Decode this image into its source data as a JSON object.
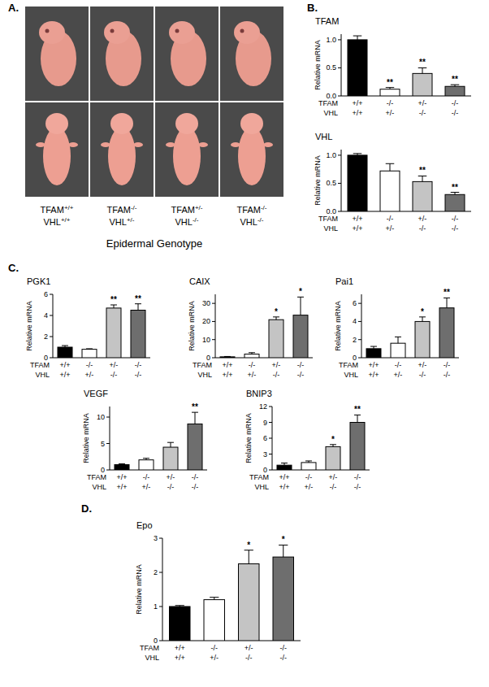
{
  "panel_labels": [
    "A.",
    "B.",
    "C.",
    "D."
  ],
  "photo_panel": {
    "columns": [
      [
        {
          "gene": "TFAM",
          "genotype": "+/+"
        },
        {
          "gene": "VHL",
          "genotype": "+/+"
        }
      ],
      [
        {
          "gene": "TFAM",
          "genotype": "-/-"
        },
        {
          "gene": "VHL",
          "genotype": "+/-"
        }
      ],
      [
        {
          "gene": "TFAM",
          "genotype": "+/-"
        },
        {
          "gene": "VHL",
          "genotype": "-/-"
        }
      ],
      [
        {
          "gene": "TFAM",
          "genotype": "-/-"
        },
        {
          "gene": "VHL",
          "genotype": "-/-"
        }
      ]
    ],
    "caption": "Epidermal Genotype"
  },
  "chart_data": [
    {
      "type": "bar",
      "title": "TFAM",
      "y_label": "Relative mRNA",
      "category_rows": [
        {
          "name": "TFAM",
          "labels": [
            "+/+",
            "-/-",
            "+/-",
            "-/-"
          ]
        },
        {
          "name": "VHL",
          "labels": [
            "+/+",
            "+/-",
            "-/-",
            "-/-"
          ]
        }
      ],
      "values": [
        1.0,
        0.12,
        0.4,
        0.17
      ],
      "errors": [
        0.07,
        0.03,
        0.1,
        0.03
      ],
      "annotations": [
        null,
        "**",
        "**",
        "**"
      ],
      "colors": [
        "#000000",
        "#ffffff",
        "#c4c4c4",
        "#6e6e6e"
      ],
      "ylim": [
        0,
        1.1
      ],
      "yticks": [
        {
          "value": 0,
          "label": "0.0"
        },
        {
          "value": 0.5,
          "label": "0.5"
        },
        {
          "value": 1,
          "label": "1.0"
        }
      ]
    },
    {
      "type": "bar",
      "title": "VHL",
      "y_label": "Relative mRNA",
      "category_rows": [
        {
          "name": "TFAM",
          "labels": [
            "+/+",
            "-/-",
            "+/-",
            "-/-"
          ]
        },
        {
          "name": "VHL",
          "labels": [
            "+/+",
            "+/-",
            "-/-",
            "-/-"
          ]
        }
      ],
      "values": [
        1.0,
        0.72,
        0.53,
        0.3
      ],
      "errors": [
        0.03,
        0.13,
        0.1,
        0.04
      ],
      "annotations": [
        null,
        null,
        "**",
        "**"
      ],
      "colors": [
        "#000000",
        "#ffffff",
        "#c4c4c4",
        "#6e6e6e"
      ],
      "ylim": [
        0,
        1.1
      ],
      "yticks": [
        {
          "value": 0,
          "label": "0.0"
        },
        {
          "value": 0.5,
          "label": "0.5"
        },
        {
          "value": 1,
          "label": "1.0"
        }
      ]
    },
    {
      "type": "bar",
      "title": "PGK1",
      "y_label": "Relative mRNA",
      "category_rows": [
        {
          "name": "TFAM",
          "labels": [
            "+/+",
            "-/-",
            "+/-",
            "-/-"
          ]
        },
        {
          "name": "VHL",
          "labels": [
            "+/+",
            "+/-",
            "-/-",
            "-/-"
          ]
        }
      ],
      "values": [
        1.0,
        0.8,
        4.7,
        4.5
      ],
      "errors": [
        0.15,
        0.05,
        0.3,
        0.6
      ],
      "annotations": [
        null,
        null,
        "**",
        "**"
      ],
      "colors": [
        "#000000",
        "#ffffff",
        "#c4c4c4",
        "#6e6e6e"
      ],
      "ylim": [
        0,
        6
      ],
      "yticks": [
        0,
        2,
        4,
        6
      ]
    },
    {
      "type": "bar",
      "title": "CAIX",
      "y_label": "Relative mRNA",
      "category_rows": [
        {
          "name": "TFAM",
          "labels": [
            "+/+",
            "-/-",
            "+/-",
            "-/-"
          ]
        },
        {
          "name": "VHL",
          "labels": [
            "+/+",
            "+/-",
            "-/-",
            "-/-"
          ]
        }
      ],
      "values": [
        0.5,
        2,
        21,
        23.5
      ],
      "errors": [
        0.2,
        0.8,
        1.5,
        10
      ],
      "annotations": [
        null,
        null,
        "*",
        "*"
      ],
      "colors": [
        "#000000",
        "#ffffff",
        "#c4c4c4",
        "#6e6e6e"
      ],
      "ylim": [
        0,
        35
      ],
      "yticks": [
        0,
        10,
        20,
        30
      ]
    },
    {
      "type": "bar",
      "title": "Pai1",
      "y_label": "Relative mRNA",
      "category_rows": [
        {
          "name": "TFAM",
          "labels": [
            "+/+",
            "-/-",
            "+/-",
            "-/-"
          ]
        },
        {
          "name": "VHL",
          "labels": [
            "+/+",
            "+/-",
            "-/-",
            "-/-"
          ]
        }
      ],
      "values": [
        1.0,
        1.6,
        4.0,
        5.5
      ],
      "errors": [
        0.25,
        0.7,
        0.5,
        1.1
      ],
      "annotations": [
        null,
        null,
        "*",
        "**"
      ],
      "colors": [
        "#000000",
        "#ffffff",
        "#c4c4c4",
        "#6e6e6e"
      ],
      "ylim": [
        0,
        7
      ],
      "yticks": [
        0,
        2,
        4,
        6
      ]
    },
    {
      "type": "bar",
      "title": "VEGF",
      "y_label": "Relative mRNA",
      "category_rows": [
        {
          "name": "TFAM",
          "labels": [
            "+/+",
            "-/-",
            "+/-",
            "-/-"
          ]
        },
        {
          "name": "VHL",
          "labels": [
            "+/+",
            "+/-",
            "-/-",
            "-/-"
          ]
        }
      ],
      "values": [
        1.0,
        1.9,
        4.3,
        8.7
      ],
      "errors": [
        0.15,
        0.3,
        0.9,
        2.2
      ],
      "annotations": [
        null,
        null,
        null,
        "**"
      ],
      "colors": [
        "#000000",
        "#ffffff",
        "#c4c4c4",
        "#6e6e6e"
      ],
      "ylim": [
        0,
        12
      ],
      "yticks": [
        0,
        5,
        10
      ]
    },
    {
      "type": "bar",
      "title": "BNIP3",
      "y_label": "Relative mRNA",
      "category_rows": [
        {
          "name": "TFAM",
          "labels": [
            "+/+",
            "-/-",
            "+/-",
            "-/-"
          ]
        },
        {
          "name": "VHL",
          "labels": [
            "+/+",
            "+/-",
            "-/-",
            "-/-"
          ]
        }
      ],
      "values": [
        0.9,
        1.4,
        4.4,
        9.0
      ],
      "errors": [
        0.4,
        0.3,
        0.4,
        1.4
      ],
      "annotations": [
        null,
        null,
        "*",
        "**"
      ],
      "colors": [
        "#000000",
        "#ffffff",
        "#c4c4c4",
        "#6e6e6e"
      ],
      "ylim": [
        0,
        12
      ],
      "yticks": [
        0,
        3,
        6,
        9,
        12
      ]
    },
    {
      "type": "bar",
      "title": "Epo",
      "y_label": "Relative mRNA",
      "category_rows": [
        {
          "name": "TFAM",
          "labels": [
            "+/+",
            "-/-",
            "+/-",
            "-/-"
          ]
        },
        {
          "name": "VHL",
          "labels": [
            "+/+",
            "+/-",
            "-/-",
            "-/-"
          ]
        }
      ],
      "values": [
        1.0,
        1.2,
        2.25,
        2.45
      ],
      "errors": [
        0.03,
        0.07,
        0.4,
        0.35
      ],
      "annotations": [
        null,
        null,
        "*",
        "*"
      ],
      "colors": [
        "#000000",
        "#ffffff",
        "#c4c4c4",
        "#6e6e6e"
      ],
      "ylim": [
        0,
        3
      ],
      "yticks": [
        0,
        1,
        2,
        3
      ]
    }
  ]
}
